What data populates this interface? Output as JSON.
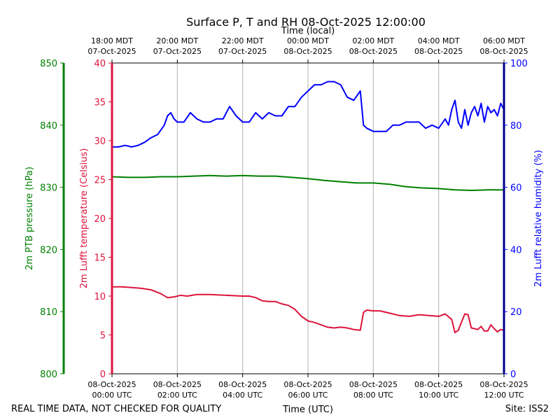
{
  "title": "Surface P, T and RH 08-Oct-2025 12:00:00",
  "top_axis_label": "Time (local)",
  "bottom_axis_label": "Time (UTC)",
  "footer_left": "REAL TIME DATA, NOT CHECKED FOR QUALITY",
  "footer_right": "Site: ISS2",
  "colors": {
    "pressure": "#008000",
    "temperature": "#dc143c",
    "humidity": "#0000ff",
    "humidity_axis": "#00008b",
    "grid": "#b0b0b0"
  },
  "chart_data": {
    "type": "line",
    "title": "Surface P, T and RH 08-Oct-2025 12:00:00",
    "x_range_hours": [
      0,
      12
    ],
    "x_ticks_utc": [
      {
        "h": 0,
        "line1": "08-Oct-2025",
        "line2": "00:00 UTC"
      },
      {
        "h": 2,
        "line1": "08-Oct-2025",
        "line2": "02:00 UTC"
      },
      {
        "h": 4,
        "line1": "08-Oct-2025",
        "line2": "04:00 UTC"
      },
      {
        "h": 6,
        "line1": "08-Oct-2025",
        "line2": "06:00 UTC"
      },
      {
        "h": 8,
        "line1": "08-Oct-2025",
        "line2": "08:00 UTC"
      },
      {
        "h": 10,
        "line1": "08-Oct-2025",
        "line2": "10:00 UTC"
      },
      {
        "h": 12,
        "line1": "08-Oct-2025",
        "line2": "12:00 UTC"
      }
    ],
    "x_ticks_local": [
      {
        "h": 0,
        "line1": "18:00 MDT",
        "line2": "07-Oct-2025"
      },
      {
        "h": 2,
        "line1": "20:00 MDT",
        "line2": "07-Oct-2025"
      },
      {
        "h": 4,
        "line1": "22:00 MDT",
        "line2": "07-Oct-2025"
      },
      {
        "h": 6,
        "line1": "00:00 MDT",
        "line2": "08-Oct-2025"
      },
      {
        "h": 8,
        "line1": "02:00 MDT",
        "line2": "08-Oct-2025"
      },
      {
        "h": 10,
        "line1": "04:00 MDT",
        "line2": "08-Oct-2025"
      },
      {
        "h": 12,
        "line1": "06:00 MDT",
        "line2": "08-Oct-2025"
      }
    ],
    "axes": {
      "pressure": {
        "label": "2m PTB pressure (hPa)",
        "range": [
          800,
          850
        ],
        "ticks": [
          800,
          810,
          820,
          830,
          840,
          850
        ]
      },
      "temperature": {
        "label": "2m Lufft temperature (Celsius)",
        "range": [
          0,
          40
        ],
        "ticks": [
          0,
          5,
          10,
          15,
          20,
          25,
          30,
          35,
          40
        ]
      },
      "humidity": {
        "label": "2m Lufft relative humidity (%)",
        "range": [
          0,
          100
        ],
        "ticks": [
          0,
          20,
          40,
          60,
          80,
          100
        ]
      }
    },
    "series": [
      {
        "name": "pressure",
        "axis": "pressure",
        "x": [
          0,
          0.5,
          1,
          1.5,
          2,
          2.5,
          3,
          3.5,
          4,
          4.5,
          5,
          5.5,
          6,
          6.5,
          7,
          7.5,
          8,
          8.5,
          9,
          9.5,
          10,
          10.5,
          11,
          11.5,
          12
        ],
        "values": [
          831.7,
          831.6,
          831.6,
          831.7,
          831.7,
          831.8,
          831.9,
          831.8,
          831.9,
          831.8,
          831.8,
          831.6,
          831.4,
          831.1,
          830.9,
          830.7,
          830.7,
          830.5,
          830.1,
          829.9,
          829.8,
          829.6,
          829.5,
          829.6,
          829.6
        ]
      },
      {
        "name": "temperature",
        "axis": "temperature",
        "x": [
          0,
          0.3,
          0.6,
          0.9,
          1.2,
          1.5,
          1.7,
          1.9,
          2.1,
          2.3,
          2.6,
          3.0,
          3.5,
          4.0,
          4.2,
          4.4,
          4.6,
          4.8,
          5.0,
          5.2,
          5.4,
          5.6,
          5.8,
          6.0,
          6.2,
          6.4,
          6.6,
          6.8,
          7.0,
          7.2,
          7.4,
          7.6,
          7.7,
          7.8,
          8.0,
          8.2,
          8.5,
          8.8,
          9.1,
          9.4,
          9.7,
          10.0,
          10.2,
          10.4,
          10.5,
          10.6,
          10.8,
          10.9,
          11.0,
          11.2,
          11.3,
          11.4,
          11.5,
          11.6,
          11.7,
          11.8,
          11.9,
          12.0
        ],
        "values": [
          11.2,
          11.2,
          11.1,
          11.0,
          10.8,
          10.3,
          9.8,
          9.9,
          10.1,
          10.0,
          10.2,
          10.2,
          10.1,
          10.0,
          10.0,
          9.8,
          9.4,
          9.3,
          9.3,
          9.0,
          8.8,
          8.3,
          7.4,
          6.8,
          6.6,
          6.3,
          6.0,
          5.9,
          6.0,
          5.9,
          5.7,
          5.6,
          7.9,
          8.2,
          8.1,
          8.1,
          7.8,
          7.5,
          7.4,
          7.6,
          7.5,
          7.4,
          7.7,
          7.0,
          5.3,
          5.6,
          7.7,
          7.6,
          5.9,
          5.7,
          6.1,
          5.5,
          5.5,
          6.3,
          5.8,
          5.4,
          5.7,
          5.6
        ]
      },
      {
        "name": "humidity",
        "axis": "humidity",
        "x": [
          0,
          0.2,
          0.4,
          0.6,
          0.8,
          1.0,
          1.2,
          1.4,
          1.6,
          1.7,
          1.8,
          1.9,
          2.0,
          2.2,
          2.4,
          2.6,
          2.8,
          3.0,
          3.2,
          3.4,
          3.6,
          3.8,
          4.0,
          4.2,
          4.4,
          4.6,
          4.8,
          5.0,
          5.2,
          5.4,
          5.6,
          5.8,
          6.0,
          6.2,
          6.4,
          6.6,
          6.8,
          7.0,
          7.2,
          7.4,
          7.6,
          7.7,
          7.8,
          8.0,
          8.2,
          8.4,
          8.6,
          8.8,
          9.0,
          9.2,
          9.4,
          9.6,
          9.8,
          10.0,
          10.2,
          10.3,
          10.4,
          10.5,
          10.6,
          10.7,
          10.8,
          10.9,
          11.0,
          11.1,
          11.2,
          11.3,
          11.4,
          11.5,
          11.6,
          11.7,
          11.8,
          11.9,
          12.0
        ],
        "values": [
          73,
          73,
          73.5,
          73,
          73.5,
          74.5,
          76,
          77,
          80,
          83,
          84,
          82,
          81,
          81,
          84,
          82,
          81,
          81,
          82,
          82,
          86,
          83,
          81,
          81,
          84,
          82,
          84,
          83,
          83,
          86,
          86,
          89,
          91,
          93,
          93,
          94,
          94,
          93,
          89,
          88,
          91,
          80,
          79,
          78,
          78,
          78,
          80,
          80,
          81,
          81,
          81,
          79,
          80,
          79,
          82,
          80,
          85,
          88,
          81,
          79,
          85,
          80,
          84,
          86,
          83,
          87,
          81,
          86,
          84,
          85,
          83,
          87,
          85
        ]
      }
    ]
  }
}
